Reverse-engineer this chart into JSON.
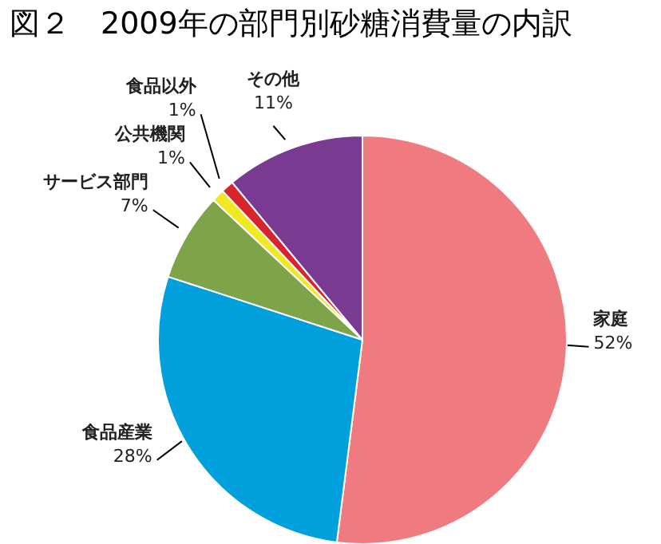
{
  "chart_data": {
    "type": "pie",
    "title": "図２　2009年の部門別砂糖消費量の内訳",
    "categories": [
      "家庭",
      "食品産業",
      "サービス部門",
      "公共機関",
      "食品以外",
      "その他"
    ],
    "values": [
      52,
      28,
      7,
      1,
      1,
      11
    ],
    "colors": [
      "#ef7a80",
      "#00a0dc",
      "#7ea44a",
      "#f0e820",
      "#d8242c",
      "#7b3a92"
    ],
    "value_labels": [
      "52%",
      "28%",
      "7%",
      "1%",
      "1%",
      "11%"
    ],
    "legend": false
  }
}
